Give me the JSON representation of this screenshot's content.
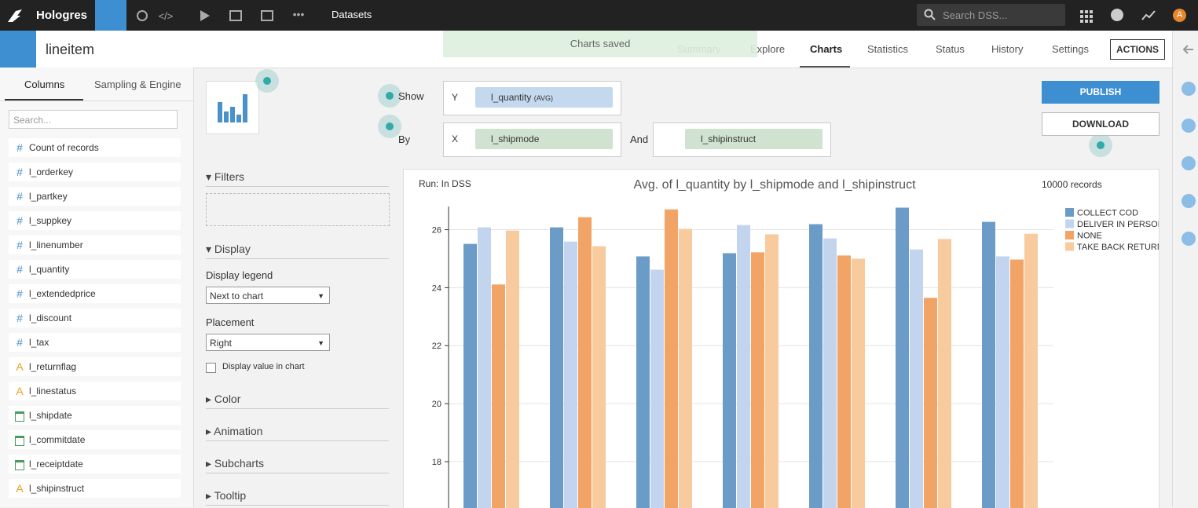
{
  "topbar": {
    "app": "Hologres",
    "section": "Datasets",
    "search": "Search DSS...",
    "avatar": "A"
  },
  "header": {
    "title": "lineitem",
    "toast": "Charts saved",
    "tabs": [
      "Summary",
      "Explore",
      "Charts",
      "Statistics",
      "Status",
      "History",
      "Settings"
    ],
    "actions": "ACTIONS"
  },
  "sidebar": {
    "tabs": [
      "Columns",
      "Sampling & Engine"
    ],
    "search": "Search...",
    "columns": [
      {
        "icon": "#",
        "name": "Count of records"
      },
      {
        "icon": "#",
        "name": "l_orderkey"
      },
      {
        "icon": "#",
        "name": "l_partkey"
      },
      {
        "icon": "#",
        "name": "l_suppkey"
      },
      {
        "icon": "#",
        "name": "l_linenumber"
      },
      {
        "icon": "#",
        "name": "l_quantity"
      },
      {
        "icon": "#",
        "name": "l_extendedprice"
      },
      {
        "icon": "#",
        "name": "l_discount"
      },
      {
        "icon": "#",
        "name": "l_tax"
      },
      {
        "icon": "A",
        "name": "l_returnflag"
      },
      {
        "icon": "A",
        "name": "l_linestatus"
      },
      {
        "name": "l_shipdate"
      },
      {
        "name": "l_commitdate"
      },
      {
        "name": "l_receiptdate"
      },
      {
        "icon": "A",
        "name": "l_shipinstruct"
      }
    ]
  },
  "config": {
    "show": "Show",
    "by": "By",
    "and": "And",
    "y": {
      "axis": "Y",
      "field": "l_quantity",
      "agg": "(AVG)"
    },
    "x": {
      "axis": "X",
      "field": "l_shipmode"
    },
    "color_field": "l_shipinstruct",
    "publish": "PUBLISH",
    "download": "DOWNLOAD"
  },
  "options": {
    "filters": "Filters",
    "display": "Display",
    "display_legend": "Display legend",
    "legend_value": "Next to chart",
    "placement": "Placement",
    "placement_value": "Right",
    "display_value": "Display value in chart",
    "collapsed": [
      "Color",
      "Animation",
      "Subcharts",
      "Tooltip"
    ]
  },
  "chart_meta": {
    "run": "Run: In DSS",
    "records": "10000 records"
  },
  "chart_data": {
    "type": "bar",
    "title": "Avg. of l_quantity by l_shipmode and l_shipinstruct",
    "categories": [
      null,
      null,
      null,
      null,
      null,
      null,
      null
    ],
    "series": [
      {
        "name": "COLLECT COD",
        "color": "#6b9bc7",
        "values": [
          25.51,
          26.08,
          25.08,
          25.19,
          26.19,
          26.76,
          26.27
        ]
      },
      {
        "name": "DELIVER IN PERSON",
        "color": "#c3d5ee",
        "values": [
          26.08,
          25.59,
          24.62,
          26.16,
          25.7,
          25.32,
          25.08
        ]
      },
      {
        "name": "NONE",
        "color": "#f2a366",
        "values": [
          24.11,
          26.43,
          26.7,
          25.22,
          25.11,
          23.65,
          24.97
        ]
      },
      {
        "name": "TAKE BACK RETURN",
        "color": "#f8cb9e",
        "values": [
          25.97,
          25.43,
          26.03,
          25.84,
          25.0,
          25.68,
          25.86
        ]
      }
    ],
    "ylim": [
      16.4,
      26.8
    ],
    "yticks": [
      18,
      20,
      22,
      24,
      26
    ],
    "grid": true,
    "legend": "right"
  }
}
